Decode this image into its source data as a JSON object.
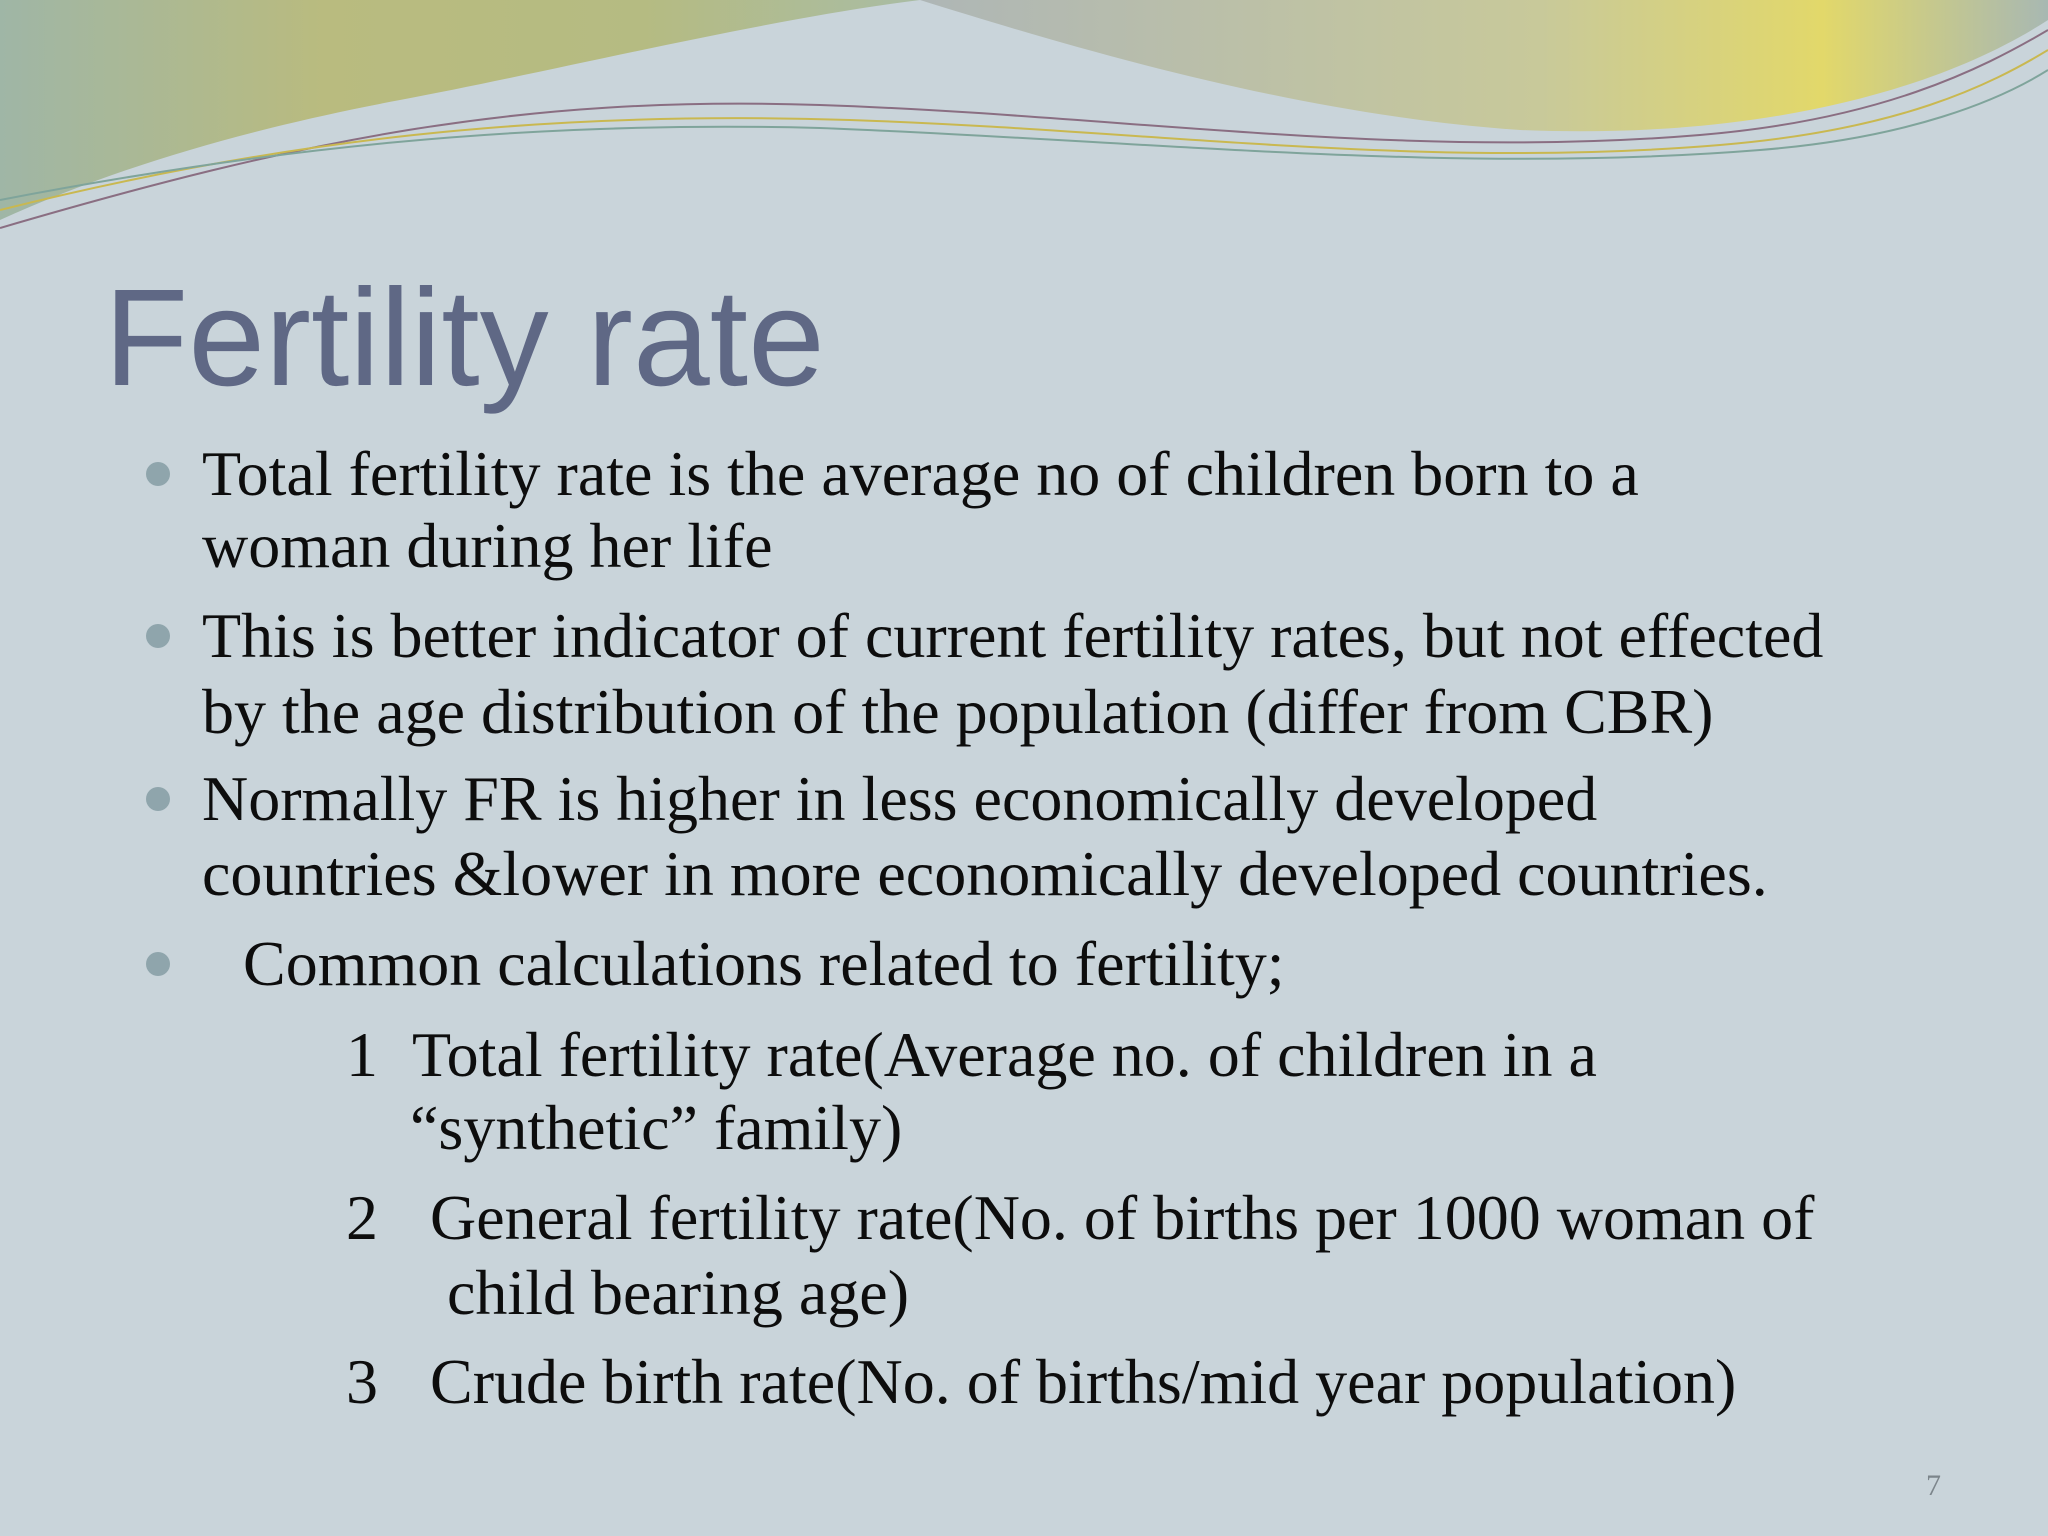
{
  "slide": {
    "title": "Fertility rate",
    "bullets": [
      {
        "lines": [
          "Total fertility rate is the average no of  children born to a",
          "woman during her life"
        ]
      },
      {
        "lines": [
          "This is better indicator of current fertility rates, but not effected",
          "by the age distribution of the population (differ from CBR)"
        ]
      },
      {
        "lines": [
          "Normally FR is higher in less economically developed",
          "countries &lower in more economically developed countries."
        ]
      },
      {
        "lines": [
          "Common calculations related to fertility;"
        ]
      }
    ],
    "calculations": [
      {
        "number": "1",
        "lines": [
          "Total fertility rate(Average no. of children in a",
          "“synthetic” family)"
        ]
      },
      {
        "number": "2",
        "lines": [
          "General fertility rate(No. of births per 1000 woman of",
          "child bearing age)"
        ]
      },
      {
        "number": "3",
        "lines": [
          "Crude birth rate(No. of births/mid year population)"
        ]
      }
    ],
    "page_number": "7"
  },
  "theme": {
    "background": "#c9d4da",
    "title_color": "#5f6885",
    "text_color": "#0d0d0d",
    "bullet_color": "#8fa5ac",
    "wave_olive": "#aeb37a",
    "wave_teal": "#8fb2ad",
    "wave_yellow": "#e6d95a"
  }
}
